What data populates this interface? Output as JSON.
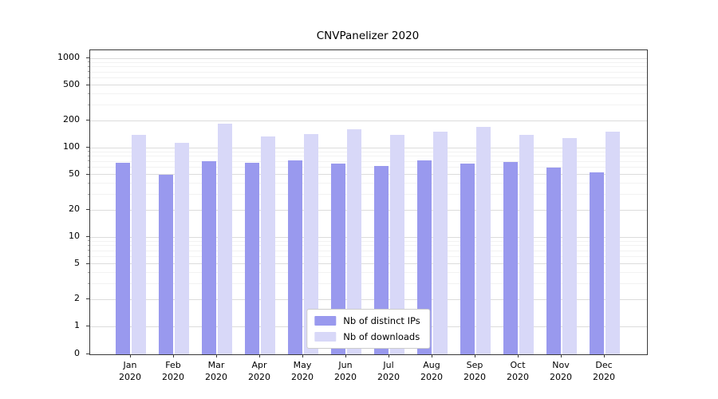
{
  "title": "CNVPanelizer 2020",
  "chart_data": {
    "type": "bar",
    "title": "CNVPanelizer 2020",
    "categories": [
      "Jan",
      "Feb",
      "Mar",
      "Apr",
      "May",
      "Jun",
      "Jul",
      "Aug",
      "Sep",
      "Oct",
      "Nov",
      "Dec"
    ],
    "category_year": "2020",
    "series": [
      {
        "name": "Nb of distinct IPs",
        "color": "#9999ee",
        "values": [
          68,
          50,
          70,
          68,
          72,
          66,
          62,
          72,
          67,
          69,
          60,
          53
        ]
      },
      {
        "name": "Nb of downloads",
        "color": "#d8d8f8",
        "values": [
          140,
          113,
          185,
          133,
          143,
          160,
          138,
          152,
          172,
          140,
          128,
          150
        ]
      }
    ],
    "y_ticks": [
      0,
      1,
      2,
      5,
      10,
      20,
      50,
      100,
      200,
      500,
      1000
    ],
    "y_minor_ticks": [
      3,
      4,
      6,
      7,
      8,
      9,
      30,
      40,
      60,
      70,
      80,
      90,
      300,
      400,
      600,
      700,
      800,
      900
    ],
    "y_scale": "symlog",
    "ylim": [
      0,
      1228
    ],
    "xlabel": "",
    "ylabel": "",
    "grid": "horizontal",
    "legend_position": "lower center"
  }
}
